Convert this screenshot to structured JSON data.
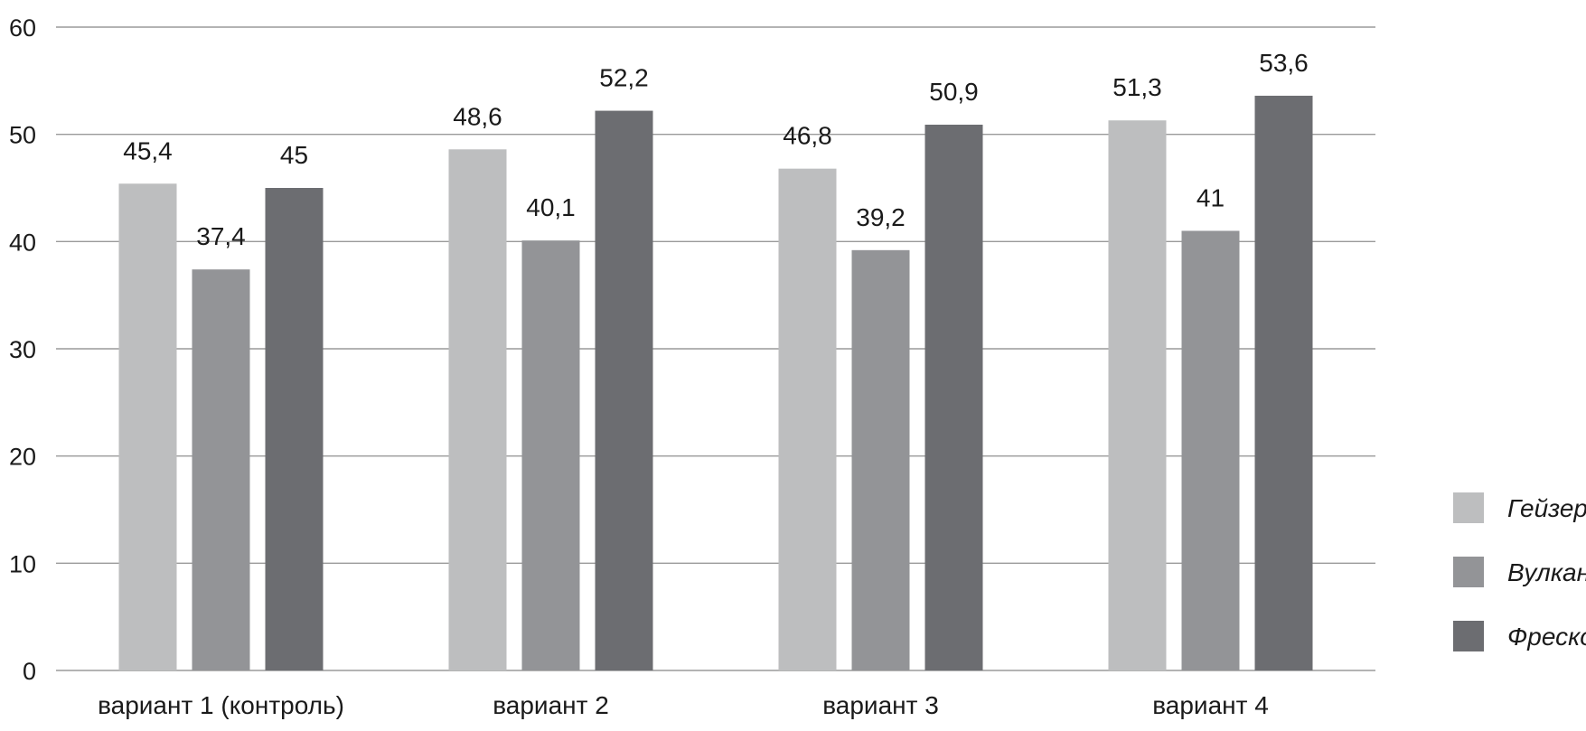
{
  "chart_data": {
    "type": "bar",
    "title": "",
    "xlabel": "",
    "ylabel": "",
    "categories": [
      "вариант 1 (контроль)",
      "вариант 2",
      "вариант 3",
      "вариант 4"
    ],
    "series": [
      {
        "name": "Гейзер",
        "color": "#bdbebf",
        "values": [
          45.4,
          48.6,
          46.8,
          51.3
        ],
        "labels": [
          "45,4",
          "48,6",
          "46,8",
          "51,3"
        ]
      },
      {
        "name": "Вулкан",
        "color": "#939497",
        "values": [
          37.4,
          40.1,
          39.2,
          41
        ],
        "labels": [
          "37,4",
          "40,1",
          "39,2",
          "41"
        ]
      },
      {
        "name": "Фреско",
        "color": "#6c6d71",
        "values": [
          45,
          52.2,
          50.9,
          53.6
        ],
        "labels": [
          "45",
          "52,2",
          "50,9",
          "53,6"
        ]
      }
    ],
    "ylim": [
      0,
      60
    ],
    "yticks": [
      0,
      10,
      20,
      30,
      40,
      50,
      60
    ],
    "grid": true,
    "legend_position": "right"
  }
}
